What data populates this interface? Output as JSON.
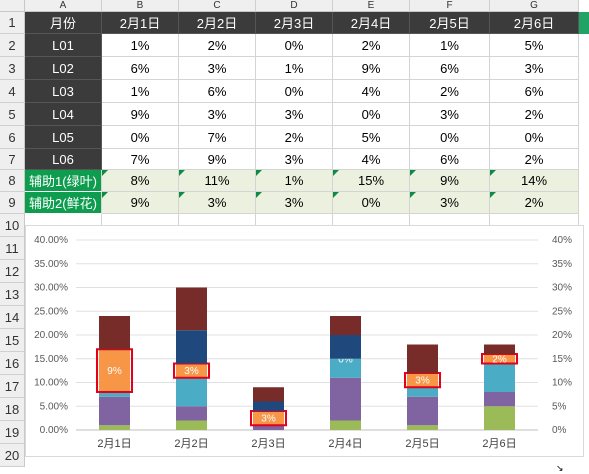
{
  "columns": [
    "A",
    "B",
    "C",
    "D",
    "E",
    "F",
    "G"
  ],
  "rows": [
    "1",
    "2",
    "3",
    "4",
    "5",
    "6",
    "7",
    "8",
    "9",
    "10",
    "11",
    "12",
    "13",
    "14",
    "15",
    "16",
    "17",
    "18",
    "19",
    "20"
  ],
  "table": {
    "header": [
      "月份",
      "2月1日",
      "2月2日",
      "2月3日",
      "2月4日",
      "2月5日",
      "2月6日"
    ],
    "data_rows": [
      {
        "label": "L01",
        "values": [
          "1%",
          "2%",
          "0%",
          "2%",
          "1%",
          "5%"
        ]
      },
      {
        "label": "L02",
        "values": [
          "6%",
          "3%",
          "1%",
          "9%",
          "6%",
          "3%"
        ]
      },
      {
        "label": "L03",
        "values": [
          "1%",
          "6%",
          "0%",
          "4%",
          "2%",
          "6%"
        ]
      },
      {
        "label": "L04",
        "values": [
          "9%",
          "3%",
          "3%",
          "0%",
          "3%",
          "2%"
        ]
      },
      {
        "label": "L05",
        "values": [
          "0%",
          "7%",
          "2%",
          "5%",
          "0%",
          "0%"
        ]
      },
      {
        "label": "L06",
        "values": [
          "7%",
          "9%",
          "3%",
          "4%",
          "6%",
          "2%"
        ]
      }
    ],
    "helper_rows": [
      {
        "label": "辅助1(绿叶)",
        "values": [
          "8%",
          "11%",
          "1%",
          "15%",
          "9%",
          "14%"
        ]
      },
      {
        "label": "辅助2(鲜花)",
        "values": [
          "9%",
          "3%",
          "3%",
          "0%",
          "3%",
          "2%"
        ]
      }
    ]
  },
  "chart_data": {
    "type": "bar",
    "stacked": true,
    "categories": [
      "2月1日",
      "2月2日",
      "2月3日",
      "2月4日",
      "2月5日",
      "2月6日"
    ],
    "series": [
      {
        "values": [
          1,
          2,
          0,
          2,
          1,
          5
        ],
        "color": "#9bbb59"
      },
      {
        "values": [
          6,
          3,
          1,
          9,
          6,
          3
        ],
        "color": "#8064a2"
      },
      {
        "values": [
          1,
          6,
          0,
          4,
          2,
          6
        ],
        "color": "#4bacc6"
      },
      {
        "values": [
          9,
          3,
          3,
          0,
          3,
          2
        ],
        "color": "#f79646"
      },
      {
        "values": [
          0,
          7,
          2,
          5,
          0,
          0
        ],
        "color": "#1f497d"
      },
      {
        "values": [
          7,
          9,
          3,
          4,
          6,
          2
        ],
        "color": "#772c2a"
      }
    ],
    "highlight_series_index": 3,
    "highlight_border_color": "#e2001a",
    "data_labels": [
      "9%",
      "3%",
      "3%",
      "0%",
      "3%",
      "2%"
    ],
    "y_ticks_left": [
      "0.00%",
      "5.00%",
      "10.00%",
      "15.00%",
      "20.00%",
      "25.00%",
      "30.00%",
      "35.00%",
      "40.00%"
    ],
    "y_ticks_right": [
      "0%",
      "5%",
      "10%",
      "15%",
      "20%",
      "25%",
      "30%",
      "35%",
      "40%"
    ],
    "ylim": [
      0,
      40
    ],
    "grid": true
  }
}
